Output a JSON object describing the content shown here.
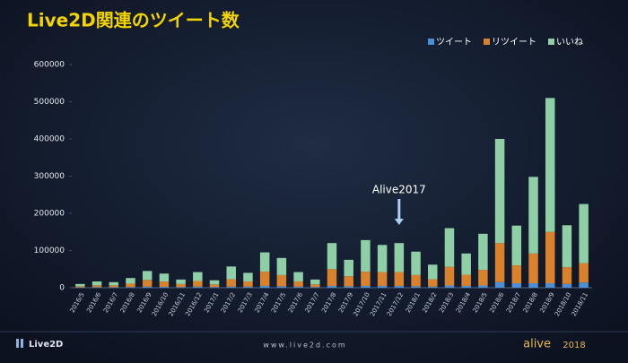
{
  "chart_data": {
    "type": "stacked_bar",
    "title": "Live2D関連のツイート数",
    "categories": [
      "2016/5",
      "2016/6",
      "2016/7",
      "2016/8",
      "2016/9",
      "2016/10",
      "2016/11",
      "2016/12",
      "2017/1",
      "2017/2",
      "2017/3",
      "2017/4",
      "2017/5",
      "2017/6",
      "2017/7",
      "2017/8",
      "2017/9",
      "2017/10",
      "2017/11",
      "2017/12",
      "2018/1",
      "2018/2",
      "2018/3",
      "2018/4",
      "2018/5",
      "2018/6",
      "2018/7",
      "2018/8",
      "2018/9",
      "2018/10",
      "2018/11"
    ],
    "series": [
      {
        "name": "ツイート",
        "color": "#4a90d9",
        "values": [
          1000,
          1500,
          1500,
          2000,
          3000,
          2500,
          2000,
          3000,
          2000,
          3000,
          3000,
          5000,
          4000,
          3000,
          2000,
          5000,
          4000,
          5000,
          5000,
          5000,
          4000,
          3000,
          6000,
          5000,
          6000,
          15000,
          12000,
          12000,
          12000,
          10000,
          14000
        ]
      },
      {
        "name": "リツイート",
        "color": "#d9822b",
        "values": [
          3000,
          5000,
          5000,
          9000,
          18000,
          14000,
          8000,
          15000,
          7000,
          20000,
          14000,
          38000,
          30000,
          14000,
          7000,
          45000,
          27000,
          38000,
          37000,
          37000,
          30000,
          20000,
          50000,
          30000,
          42000,
          105000,
          48000,
          80000,
          138000,
          45000,
          52000
        ]
      },
      {
        "name": "いいね",
        "color": "#8fcfa6",
        "values": [
          6000,
          10500,
          8500,
          15000,
          24000,
          21500,
          12000,
          24000,
          11000,
          34000,
          23000,
          52000,
          46000,
          25000,
          13000,
          70000,
          44000,
          85000,
          73000,
          78000,
          63000,
          39000,
          104000,
          57000,
          97000,
          280000,
          107000,
          206000,
          360000,
          113000,
          159000
        ]
      }
    ],
    "ylim": [
      0,
      600000
    ],
    "yticks": [
      0,
      100000,
      200000,
      300000,
      400000,
      500000,
      600000
    ],
    "legend": "top-right",
    "annotation": {
      "text": "Alive2017",
      "category": "2017/12"
    }
  },
  "footer": {
    "logo": "Live2D",
    "url": "www.live2d.com",
    "event": "alive",
    "year": "2018"
  }
}
